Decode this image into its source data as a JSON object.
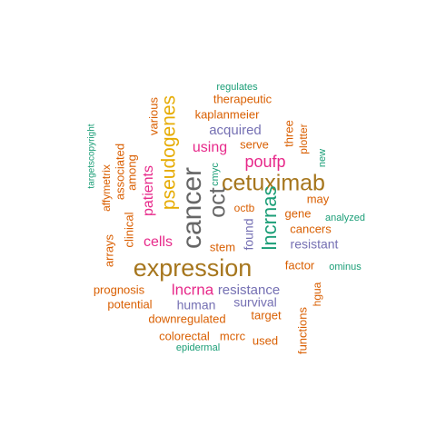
{
  "palette": {
    "green": "#1b9e77",
    "orange": "#d95f02",
    "purple": "#7570b3",
    "magenta": "#e7298a",
    "gold": "#e6ab02",
    "brown": "#a6761d",
    "gray": "#666666"
  },
  "words": [
    {
      "text": "expression",
      "color": "brown"
    },
    {
      "text": "cancer",
      "color": "gray"
    },
    {
      "text": "cetuximab",
      "color": "brown"
    },
    {
      "text": "oct",
      "color": "gray"
    },
    {
      "text": "pseudogenes",
      "color": "gold"
    },
    {
      "text": "lncrnas",
      "color": "green"
    },
    {
      "text": "lncrna",
      "color": "magenta"
    },
    {
      "text": "poufp",
      "color": "magenta"
    },
    {
      "text": "patients",
      "color": "magenta"
    },
    {
      "text": "cells",
      "color": "magenta"
    },
    {
      "text": "acquired",
      "color": "purple"
    },
    {
      "text": "using",
      "color": "magenta"
    },
    {
      "text": "resistance",
      "color": "purple"
    },
    {
      "text": "resistant",
      "color": "purple"
    },
    {
      "text": "survival",
      "color": "purple"
    },
    {
      "text": "human",
      "color": "purple"
    },
    {
      "text": "kaplanmeier",
      "color": "orange"
    },
    {
      "text": "therapeutic",
      "color": "orange"
    },
    {
      "text": "various",
      "color": "orange"
    },
    {
      "text": "regulates",
      "color": "green"
    },
    {
      "text": "serve",
      "color": "orange"
    },
    {
      "text": "three",
      "color": "orange"
    },
    {
      "text": "plotter",
      "color": "orange"
    },
    {
      "text": "new",
      "color": "green"
    },
    {
      "text": "cmyc",
      "color": "green"
    },
    {
      "text": "associated",
      "color": "orange"
    },
    {
      "text": "among",
      "color": "orange"
    },
    {
      "text": "affymetrix",
      "color": "orange"
    },
    {
      "text": "targetscopyright",
      "color": "green"
    },
    {
      "text": "may",
      "color": "orange"
    },
    {
      "text": "octb",
      "color": "orange"
    },
    {
      "text": "gene",
      "color": "orange"
    },
    {
      "text": "analyzed",
      "color": "green"
    },
    {
      "text": "cancers",
      "color": "orange"
    },
    {
      "text": "found",
      "color": "purple"
    },
    {
      "text": "stem",
      "color": "orange"
    },
    {
      "text": "clinical",
      "color": "orange"
    },
    {
      "text": "arrays",
      "color": "orange"
    },
    {
      "text": "factor",
      "color": "orange"
    },
    {
      "text": "ominus",
      "color": "green"
    },
    {
      "text": "prognosis",
      "color": "orange"
    },
    {
      "text": "potential",
      "color": "orange"
    },
    {
      "text": "downregulated",
      "color": "orange"
    },
    {
      "text": "target",
      "color": "orange"
    },
    {
      "text": "hgua",
      "color": "orange"
    },
    {
      "text": "functions",
      "color": "orange"
    },
    {
      "text": "colorectal",
      "color": "orange"
    },
    {
      "text": "mcrc",
      "color": "orange"
    },
    {
      "text": "used",
      "color": "orange"
    },
    {
      "text": "epidermal",
      "color": "green"
    }
  ]
}
